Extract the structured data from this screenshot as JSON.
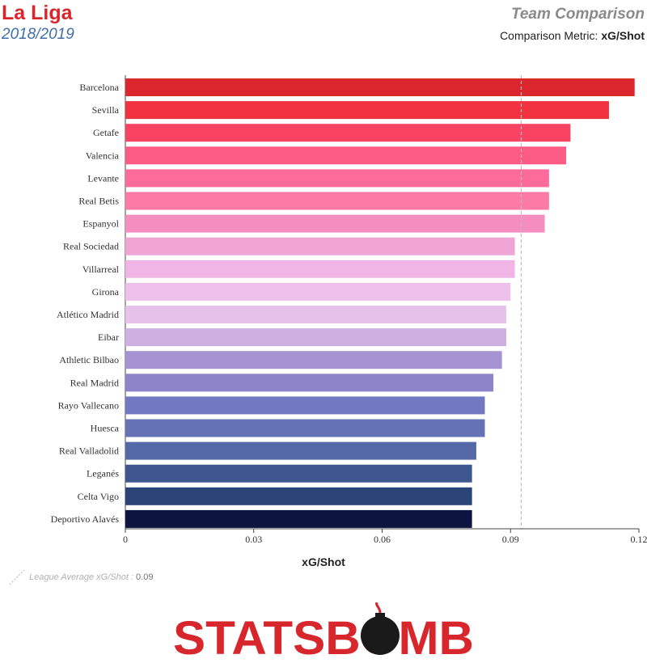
{
  "header": {
    "league": "La Liga",
    "season": "2018/2019",
    "comparison_title": "Team Comparison",
    "metric_label": "Comparison Metric:",
    "metric_value": "xG/Shot"
  },
  "legend": {
    "avg_label": "League Average xG/Shot :",
    "avg_value": "0.09"
  },
  "logo": {
    "text": "STATSBOMB"
  },
  "colors": {
    "avg_line": "#bdbdbd",
    "brand_red": "#d7262c"
  },
  "chart_data": {
    "type": "bar",
    "orientation": "horizontal",
    "categories": [
      "Barcelona",
      "Sevilla",
      "Getafe",
      "Valencia",
      "Levante",
      "Real Betis",
      "Espanyol",
      "Real Sociedad",
      "Villarreal",
      "Girona",
      "Atlético Madrid",
      "Eibar",
      "Athletic Bilbao",
      "Real Madrid",
      "Rayo Vallecano",
      "Huesca",
      "Real Valladolid",
      "Leganés",
      "Celta Vigo",
      "Deportivo Alavés"
    ],
    "values": [
      0.119,
      0.113,
      0.104,
      0.103,
      0.099,
      0.099,
      0.098,
      0.091,
      0.091,
      0.09,
      0.089,
      0.089,
      0.088,
      0.086,
      0.084,
      0.084,
      0.082,
      0.081,
      0.081,
      0.081
    ],
    "colors": [
      "#dc262e",
      "#f0323f",
      "#f94362",
      "#fb5b84",
      "#fc6b99",
      "#fc7aa6",
      "#f68dbf",
      "#f0a4d4",
      "#f0b5e4",
      "#eebfe8",
      "#e6c1ea",
      "#cfafe0",
      "#a593d4",
      "#8d84ca",
      "#7278c2",
      "#6672b6",
      "#5568a8",
      "#3e5790",
      "#2a4478",
      "#0d1440"
    ],
    "average": 0.0925,
    "xlabel": "xG/Shot",
    "xlim": [
      0,
      0.12
    ],
    "xticks": [
      0,
      0.03,
      0.06,
      0.09,
      0.12
    ],
    "xtick_labels": [
      "0",
      "0.03",
      "0.06",
      "0.09",
      "0.12"
    ]
  }
}
